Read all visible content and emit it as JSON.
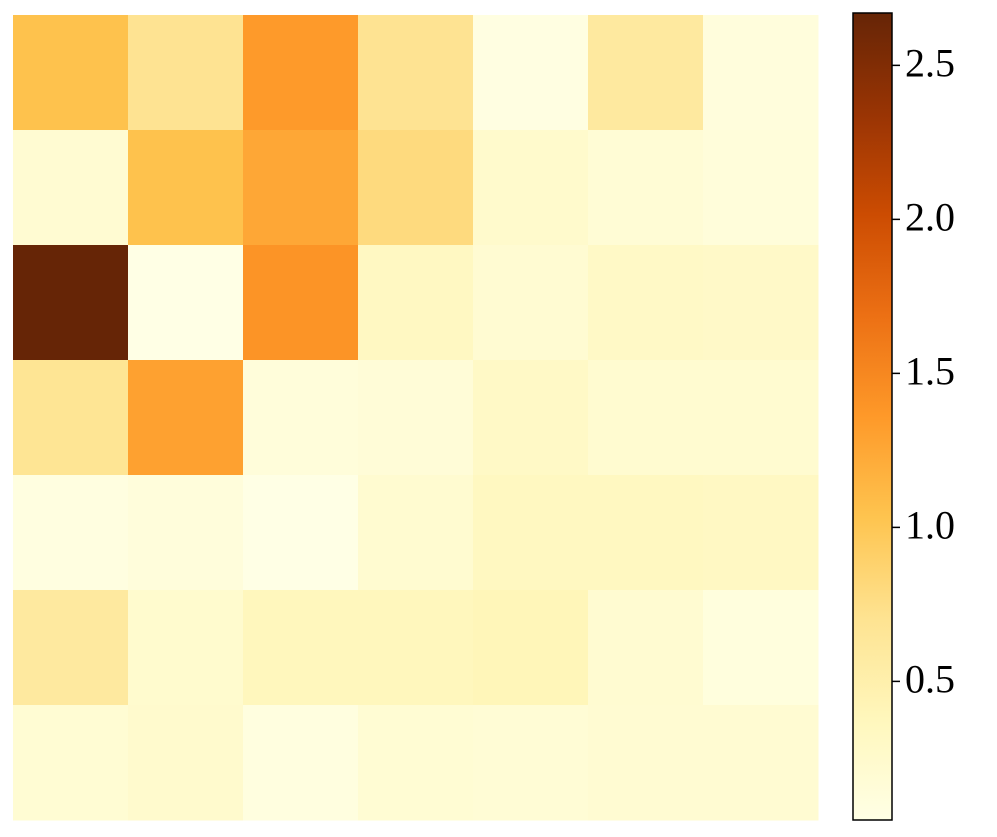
{
  "chart_data": {
    "type": "heatmap",
    "values": [
      [
        1.05,
        0.7,
        1.35,
        0.7,
        0.08,
        0.6,
        0.12
      ],
      [
        0.2,
        1.05,
        1.25,
        0.8,
        0.25,
        0.18,
        0.14
      ],
      [
        2.67,
        0.05,
        1.4,
        0.33,
        0.2,
        0.3,
        0.28
      ],
      [
        0.68,
        1.3,
        0.14,
        0.16,
        0.3,
        0.22,
        0.22
      ],
      [
        0.09,
        0.13,
        0.05,
        0.22,
        0.34,
        0.34,
        0.32
      ],
      [
        0.6,
        0.23,
        0.37,
        0.37,
        0.4,
        0.21,
        0.11
      ],
      [
        0.19,
        0.24,
        0.1,
        0.19,
        0.18,
        0.2,
        0.2
      ]
    ],
    "colormap": [
      "#ffffe5",
      "#fff7bc",
      "#fee391",
      "#fec44f",
      "#fe9929",
      "#ec7014",
      "#cc4c02",
      "#993404",
      "#662506"
    ],
    "clim": [
      0.05,
      2.67
    ],
    "cticks": [
      0.5,
      {
        "value": 1,
        "label": "1.0"
      },
      1.5,
      {
        "value": 2,
        "label": "2.0"
      },
      2.5
    ]
  }
}
